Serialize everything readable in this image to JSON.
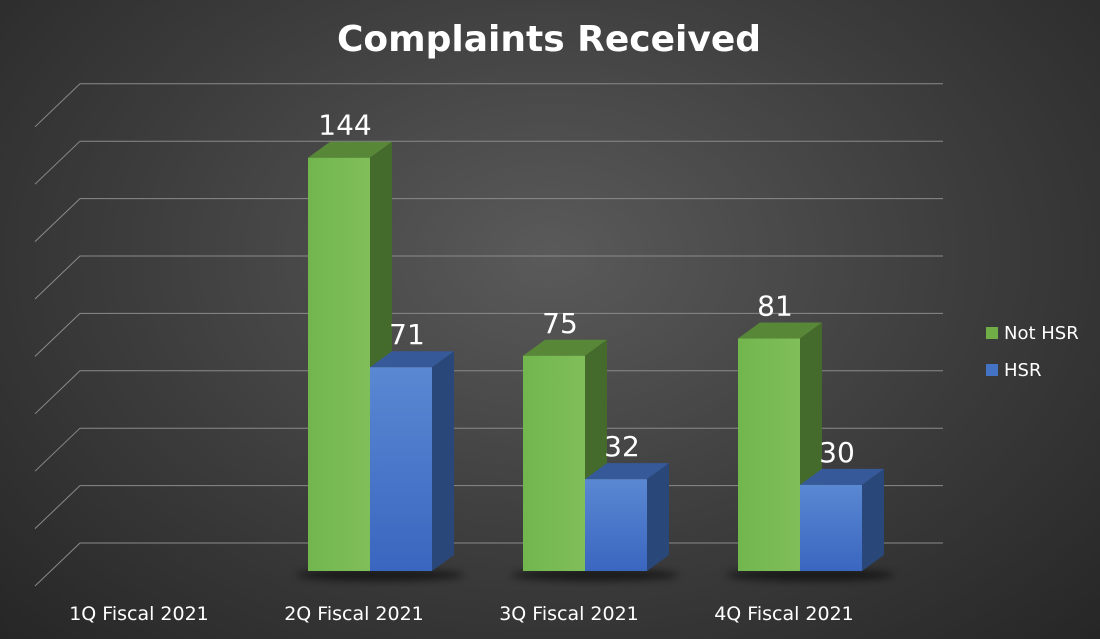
{
  "chart_data": {
    "type": "bar",
    "title": "Complaints Received",
    "categories": [
      "1Q Fiscal 2021",
      "2Q Fiscal 2021",
      "3Q Fiscal 2021",
      "4Q Fiscal 2021"
    ],
    "series": [
      {
        "name": "Not HSR",
        "values": [
          null,
          144,
          75,
          81
        ],
        "color": "#70ad47"
      },
      {
        "name": "HSR",
        "values": [
          null,
          71,
          32,
          30
        ],
        "color": "#4472c4"
      }
    ],
    "ylim": [
      0,
      160
    ],
    "grid": true,
    "three_d": true,
    "legend_position": "right"
  }
}
